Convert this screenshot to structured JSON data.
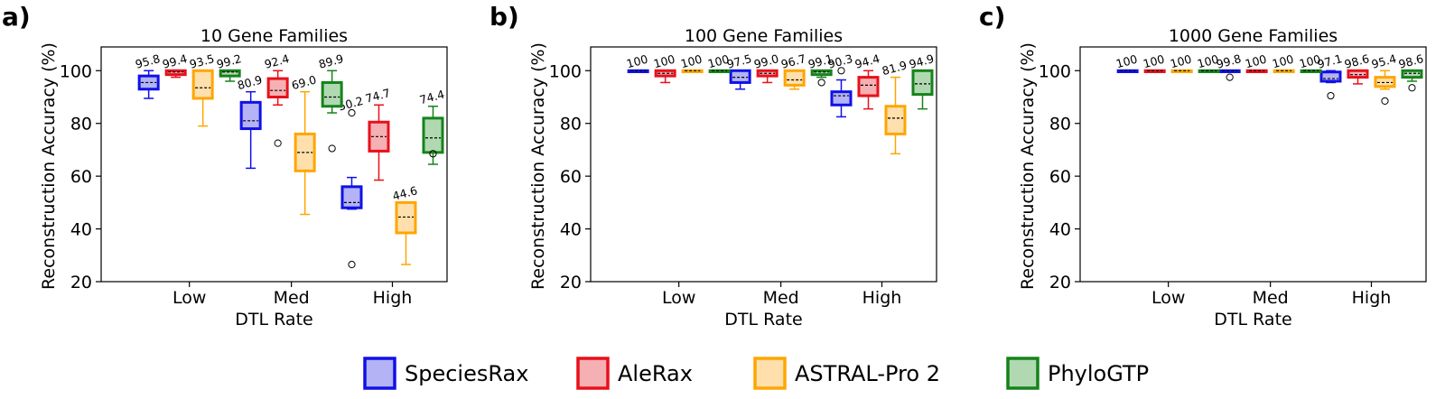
{
  "colors": {
    "SpeciesRax": {
      "stroke": "#1010e8",
      "fill": "#b3b3f5"
    },
    "AleRax": {
      "stroke": "#e8101a",
      "fill": "#f5b0b3"
    },
    "ASTRAL-Pro 2": {
      "stroke": "#ffa500",
      "fill": "#ffe0ad"
    },
    "PhyloGTP": {
      "stroke": "#15831a",
      "fill": "#b0d9b2"
    }
  },
  "legend": [
    "SpeciesRax",
    "AleRax",
    "ASTRAL-Pro 2",
    "PhyloGTP"
  ],
  "chart_data": [
    {
      "panel": "a)",
      "type": "box",
      "title": "10 Gene Families",
      "xlabel": "DTL Rate",
      "ylabel": "Reconstruction Accuracy (%)",
      "categories": [
        "Low",
        "Med",
        "High"
      ],
      "ylim": [
        20,
        109
      ],
      "yticks": [
        20,
        40,
        60,
        80,
        100
      ],
      "series": [
        {
          "name": "SpeciesRax",
          "boxes": [
            {
              "whislo": 89.5,
              "q1": 93,
              "med": 95.5,
              "q3": 98,
              "whishi": 100,
              "label": "95.8",
              "fliers": []
            },
            {
              "whislo": 63,
              "q1": 78,
              "med": 81,
              "q3": 88,
              "whishi": 92,
              "label": "80.9",
              "fliers": []
            },
            {
              "whislo": 47.5,
              "q1": 48,
              "med": 50,
              "q3": 56,
              "whishi": 59.5,
              "label": "50.2",
              "fliers": [
                26.5,
                84
              ]
            }
          ]
        },
        {
          "name": "AleRax",
          "boxes": [
            {
              "whislo": 97.5,
              "q1": 98.5,
              "med": 99.5,
              "q3": 100,
              "whishi": 100,
              "label": "99.4",
              "fliers": []
            },
            {
              "whislo": 87,
              "q1": 90,
              "med": 92.5,
              "q3": 97,
              "whishi": 100,
              "label": "92.4",
              "fliers": [
                72.5
              ]
            },
            {
              "whislo": 58.5,
              "q1": 69.5,
              "med": 75,
              "q3": 80.5,
              "whishi": 87,
              "label": "74.7",
              "fliers": []
            }
          ]
        },
        {
          "name": "ASTRAL-Pro 2",
          "boxes": [
            {
              "whislo": 79,
              "q1": 89.5,
              "med": 93.5,
              "q3": 100,
              "whishi": 100,
              "label": "93.5",
              "fliers": []
            },
            {
              "whislo": 45.5,
              "q1": 62,
              "med": 69,
              "q3": 76,
              "whishi": 92,
              "label": "69.0",
              "fliers": []
            },
            {
              "whislo": 26.5,
              "q1": 38.5,
              "med": 44.5,
              "q3": 50,
              "whishi": 50,
              "label": "44.6",
              "fliers": []
            }
          ]
        },
        {
          "name": "PhyloGTP",
          "boxes": [
            {
              "whislo": 96,
              "q1": 98,
              "med": 99.5,
              "q3": 100,
              "whishi": 100,
              "label": "99.2",
              "fliers": []
            },
            {
              "whislo": 84,
              "q1": 86.5,
              "med": 90,
              "q3": 95.5,
              "whishi": 100,
              "label": "89.9",
              "fliers": [
                70.5
              ]
            },
            {
              "whislo": 64.5,
              "q1": 69,
              "med": 74.5,
              "q3": 82,
              "whishi": 86.5,
              "label": "74.4",
              "fliers": [
                68.5
              ]
            }
          ]
        }
      ]
    },
    {
      "panel": "b)",
      "type": "box",
      "title": "100 Gene Families",
      "xlabel": "DTL Rate",
      "ylabel": "Reconstruction Accuracy (%)",
      "categories": [
        "Low",
        "Med",
        "High"
      ],
      "ylim": [
        20,
        109
      ],
      "yticks": [
        20,
        40,
        60,
        80,
        100
      ],
      "series": [
        {
          "name": "SpeciesRax",
          "boxes": [
            {
              "whislo": 100,
              "q1": 100,
              "med": 100,
              "q3": 100,
              "whishi": 100,
              "label": "100",
              "fliers": []
            },
            {
              "whislo": 93,
              "q1": 95.5,
              "med": 97.5,
              "q3": 100,
              "whishi": 100,
              "label": "97.5",
              "fliers": []
            },
            {
              "whislo": 82.5,
              "q1": 87,
              "med": 90.5,
              "q3": 92,
              "whishi": 96.5,
              "label": "90.3",
              "fliers": [
                100
              ]
            }
          ]
        },
        {
          "name": "AleRax",
          "boxes": [
            {
              "whislo": 95.5,
              "q1": 98,
              "med": 99,
              "q3": 100,
              "whishi": 100,
              "label": "100",
              "fliers": []
            },
            {
              "whislo": 95.5,
              "q1": 98,
              "med": 99,
              "q3": 100,
              "whishi": 100,
              "label": "99.0",
              "fliers": []
            },
            {
              "whislo": 85.5,
              "q1": 90.5,
              "med": 94.5,
              "q3": 97.5,
              "whishi": 100,
              "label": "94.4",
              "fliers": []
            }
          ]
        },
        {
          "name": "ASTRAL-Pro 2",
          "boxes": [
            {
              "whislo": 100,
              "q1": 100,
              "med": 100,
              "q3": 100,
              "whishi": 100,
              "label": "100",
              "fliers": []
            },
            {
              "whislo": 93,
              "q1": 94.5,
              "med": 96.5,
              "q3": 100,
              "whishi": 100,
              "label": "96.7",
              "fliers": []
            },
            {
              "whislo": 68.5,
              "q1": 76,
              "med": 82,
              "q3": 86.5,
              "whishi": 97.5,
              "label": "81.9",
              "fliers": []
            }
          ]
        },
        {
          "name": "PhyloGTP",
          "boxes": [
            {
              "whislo": 100,
              "q1": 100,
              "med": 100,
              "q3": 100,
              "whishi": 100,
              "label": "100",
              "fliers": []
            },
            {
              "whislo": 97.5,
              "q1": 98.5,
              "med": 99.5,
              "q3": 100,
              "whishi": 100,
              "label": "99.1",
              "fliers": [
                95.5
              ]
            },
            {
              "whislo": 85.5,
              "q1": 91,
              "med": 95,
              "q3": 100,
              "whishi": 100,
              "label": "94.9",
              "fliers": []
            }
          ]
        }
      ]
    },
    {
      "panel": "c)",
      "type": "box",
      "title": "1000 Gene Families",
      "xlabel": "DTL Rate",
      "ylabel": "Reconstruction Accuracy (%)",
      "categories": [
        "Low",
        "Med",
        "High"
      ],
      "ylim": [
        20,
        109
      ],
      "yticks": [
        20,
        40,
        60,
        80,
        100
      ],
      "series": [
        {
          "name": "SpeciesRax",
          "boxes": [
            {
              "whislo": 100,
              "q1": 100,
              "med": 100,
              "q3": 100,
              "whishi": 100,
              "label": "100",
              "fliers": []
            },
            {
              "whislo": 100,
              "q1": 100,
              "med": 100,
              "q3": 100,
              "whishi": 100,
              "label": "99.8",
              "fliers": [
                97.5
              ]
            },
            {
              "whislo": 95.5,
              "q1": 96,
              "med": 97,
              "q3": 99.5,
              "whishi": 100,
              "label": "97.1",
              "fliers": [
                90.5
              ]
            }
          ]
        },
        {
          "name": "AleRax",
          "boxes": [
            {
              "whislo": 100,
              "q1": 100,
              "med": 100,
              "q3": 100,
              "whishi": 100,
              "label": "100",
              "fliers": []
            },
            {
              "whislo": 100,
              "q1": 100,
              "med": 100,
              "q3": 100,
              "whishi": 100,
              "label": "100",
              "fliers": []
            },
            {
              "whislo": 95,
              "q1": 97.5,
              "med": 98.5,
              "q3": 100,
              "whishi": 100,
              "label": "98.6",
              "fliers": []
            }
          ]
        },
        {
          "name": "ASTRAL-Pro 2",
          "boxes": [
            {
              "whislo": 100,
              "q1": 100,
              "med": 100,
              "q3": 100,
              "whishi": 100,
              "label": "100",
              "fliers": []
            },
            {
              "whislo": 100,
              "q1": 100,
              "med": 100,
              "q3": 100,
              "whishi": 100,
              "label": "100",
              "fliers": []
            },
            {
              "whislo": 93,
              "q1": 94,
              "med": 95.5,
              "q3": 97.5,
              "whishi": 100,
              "label": "95.4",
              "fliers": [
                88.5
              ]
            }
          ]
        },
        {
          "name": "PhyloGTP",
          "boxes": [
            {
              "whislo": 100,
              "q1": 100,
              "med": 100,
              "q3": 100,
              "whishi": 100,
              "label": "100",
              "fliers": []
            },
            {
              "whislo": 100,
              "q1": 100,
              "med": 100,
              "q3": 100,
              "whishi": 100,
              "label": "100",
              "fliers": []
            },
            {
              "whislo": 96,
              "q1": 97.5,
              "med": 99,
              "q3": 100,
              "whishi": 100,
              "label": "98.6",
              "fliers": [
                93.5
              ]
            }
          ]
        }
      ]
    }
  ]
}
